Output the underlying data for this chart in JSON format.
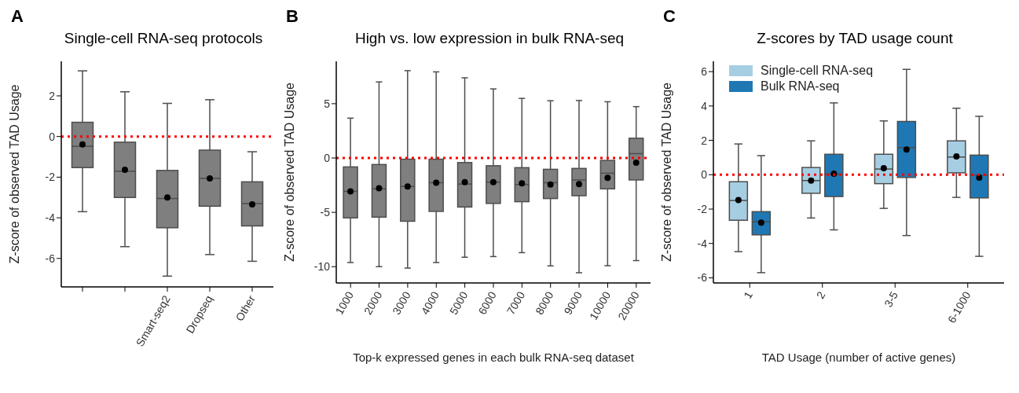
{
  "chart_data": [
    {
      "type": "box",
      "title": "Single-cell RNA-seq protocols",
      "ylabel": "Z-score of observed TAD Usage",
      "annotations": [
        "A"
      ],
      "categories": [
        null,
        null,
        "Smart-seq2",
        "Dropseq",
        "Other"
      ],
      "color": "#7f7f7f",
      "marker": "circle",
      "grid": false,
      "legend": false,
      "ylim": [
        -7.4,
        3.7
      ],
      "yticks": [
        -6,
        -4,
        -2,
        0,
        2
      ],
      "ref_lines": [
        {
          "axis": "y",
          "value": 0,
          "color": "#ff0000",
          "line_style": "dotted"
        }
      ],
      "boxes": [
        {
          "low": -3.7,
          "q1": -1.53,
          "median": -0.48,
          "q3": 0.7,
          "high": 3.23,
          "mean": -0.39
        },
        {
          "low": -5.42,
          "q1": -3.0,
          "median": -1.71,
          "q3": -0.28,
          "high": 2.2,
          "mean": -1.64
        },
        {
          "low": -6.87,
          "q1": -4.49,
          "median": -3.05,
          "q3": -1.67,
          "high": 1.63,
          "mean": -3.0
        },
        {
          "low": -5.81,
          "q1": -3.43,
          "median": -2.06,
          "q3": -0.67,
          "high": 1.81,
          "mean": -2.06
        },
        {
          "low": -6.14,
          "q1": -4.4,
          "median": -3.3,
          "q3": -2.23,
          "high": -0.75,
          "mean": -3.34
        }
      ]
    },
    {
      "type": "box",
      "title": "High vs. low expression in bulk RNA-seq",
      "ylabel": "Z-score of observed TAD Usage",
      "xlabel": "Top-k expressed genes in each bulk RNA-seq dataset",
      "annotations": [
        "B"
      ],
      "categories": [
        "1000",
        "2000",
        "3000",
        "4000",
        "5000",
        "6000",
        "7000",
        "8000",
        "9000",
        "10000",
        "20000"
      ],
      "color": "#7f7f7f",
      "marker": "circle",
      "grid": false,
      "legend": false,
      "ylim": [
        -11.5,
        8.9
      ],
      "yticks": [
        -10,
        -5,
        0,
        5
      ],
      "ref_lines": [
        {
          "axis": "y",
          "value": 0,
          "color": "#ff0000",
          "line_style": "dotted"
        }
      ],
      "boxes": [
        {
          "low": -9.62,
          "q1": -5.51,
          "median": -3.07,
          "q3": -0.82,
          "high": 3.67,
          "mean": -3.07
        },
        {
          "low": -10.0,
          "q1": -5.44,
          "median": -2.84,
          "q3": -0.6,
          "high": 7.0,
          "mean": -2.78
        },
        {
          "low": -10.13,
          "q1": -5.82,
          "median": -2.62,
          "q3": -0.11,
          "high": 8.04,
          "mean": -2.62
        },
        {
          "low": -9.62,
          "q1": -4.91,
          "median": -2.27,
          "q3": -0.11,
          "high": 7.93,
          "mean": -2.27
        },
        {
          "low": -9.13,
          "q1": -4.51,
          "median": -2.4,
          "q3": -0.42,
          "high": 7.38,
          "mean": -2.22
        },
        {
          "low": -9.07,
          "q1": -4.18,
          "median": -2.22,
          "q3": -0.71,
          "high": 6.36,
          "mean": -2.22
        },
        {
          "low": -8.71,
          "q1": -4.02,
          "median": -2.44,
          "q3": -0.89,
          "high": 5.49,
          "mean": -2.33
        },
        {
          "low": -9.93,
          "q1": -3.73,
          "median": -2.27,
          "q3": -1.04,
          "high": 5.27,
          "mean": -2.44
        },
        {
          "low": -10.56,
          "q1": -3.47,
          "median": -2.02,
          "q3": -0.96,
          "high": 5.29,
          "mean": -2.4
        },
        {
          "low": -9.91,
          "q1": -2.84,
          "median": -1.4,
          "q3": -0.22,
          "high": 5.18,
          "mean": -1.82
        },
        {
          "low": -9.44,
          "q1": -2.02,
          "median": 0.4,
          "q3": 1.82,
          "high": 4.73,
          "mean": -0.44
        }
      ]
    },
    {
      "type": "box",
      "title": "Z-scores by TAD usage count",
      "ylabel": "Z-score of observed TAD Usage",
      "xlabel": "TAD Usage (number of active genes)",
      "annotations": [
        "C"
      ],
      "categories": [
        "1",
        "2",
        "3-5",
        "6-1000"
      ],
      "marker": "circle",
      "grid": false,
      "legend": "top left",
      "ylim": [
        -6.3,
        6.6
      ],
      "yticks": [
        -6,
        -4,
        -2,
        0,
        2,
        4,
        6
      ],
      "ref_lines": [
        {
          "axis": "y",
          "value": 0,
          "color": "#ff0000",
          "line_style": "dotted"
        }
      ],
      "series": [
        {
          "name": "Single-cell RNA-seq",
          "color": "#a6cee3",
          "boxes": [
            {
              "low": -4.48,
              "q1": -2.65,
              "median": -1.5,
              "q3": -0.41,
              "high": 1.79,
              "mean": -1.47
            },
            {
              "low": -2.52,
              "q1": -1.08,
              "median": -0.34,
              "q3": 0.42,
              "high": 1.97,
              "mean": -0.34
            },
            {
              "low": -1.96,
              "q1": -0.52,
              "median": 0.33,
              "q3": 1.19,
              "high": 3.13,
              "mean": 0.38
            },
            {
              "low": -1.32,
              "q1": 0.11,
              "median": 1.03,
              "q3": 1.97,
              "high": 3.87,
              "mean": 1.07
            }
          ]
        },
        {
          "name": "Bulk RNA-seq",
          "color": "#1f78b4",
          "boxes": [
            {
              "low": -5.7,
              "q1": -3.5,
              "median": -2.74,
              "q3": -2.15,
              "high": 1.11,
              "mean": -2.79
            },
            {
              "low": -3.21,
              "q1": -1.27,
              "median": 0.03,
              "q3": 1.19,
              "high": 4.18,
              "mean": 0.06
            },
            {
              "low": -3.54,
              "q1": -0.16,
              "median": 1.58,
              "q3": 3.1,
              "high": 6.13,
              "mean": 1.47
            },
            {
              "low": -4.75,
              "q1": -1.35,
              "median": -0.02,
              "q3": 1.14,
              "high": 3.4,
              "mean": -0.17
            }
          ]
        }
      ]
    }
  ]
}
